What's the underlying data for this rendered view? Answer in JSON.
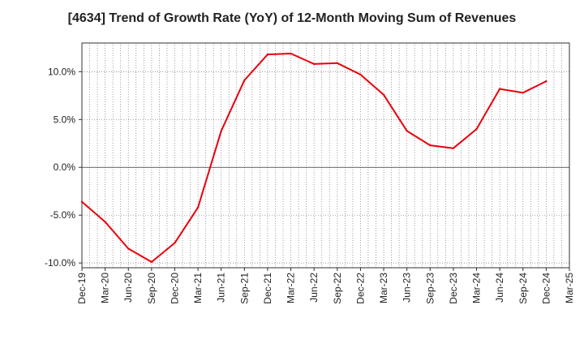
{
  "chart_data": {
    "type": "line",
    "title": "[4634]  Trend of Growth Rate (YoY) of 12-Month Moving Sum of Revenues",
    "xlabel": "",
    "ylabel": "",
    "x_ticks": [
      "Dec-19",
      "Mar-20",
      "Jun-20",
      "Sep-20",
      "Dec-20",
      "Mar-21",
      "Jun-21",
      "Sep-21",
      "Dec-21",
      "Mar-22",
      "Jun-22",
      "Sep-22",
      "Dec-22",
      "Mar-23",
      "Jun-23",
      "Sep-23",
      "Dec-23",
      "Mar-24",
      "Jun-24",
      "Sep-24",
      "Dec-24",
      "Mar-25"
    ],
    "y_ticks": [
      "10.0%",
      "5.0%",
      "0.0%",
      "-5.0%",
      "-10.0%"
    ],
    "y_tick_values": [
      10,
      5,
      0,
      -5,
      -10
    ],
    "ylim": [
      -10.5,
      13
    ],
    "grid": true,
    "series": [
      {
        "color": "#e8000b",
        "values": [
          -3.6,
          -5.7,
          -8.5,
          -9.9,
          -7.9,
          -4.2,
          3.8,
          9.1,
          11.8,
          11.9,
          10.8,
          10.9,
          9.7,
          7.6,
          3.8,
          2.3,
          2.0,
          4.0,
          8.2,
          7.8,
          9.0
        ]
      }
    ]
  }
}
